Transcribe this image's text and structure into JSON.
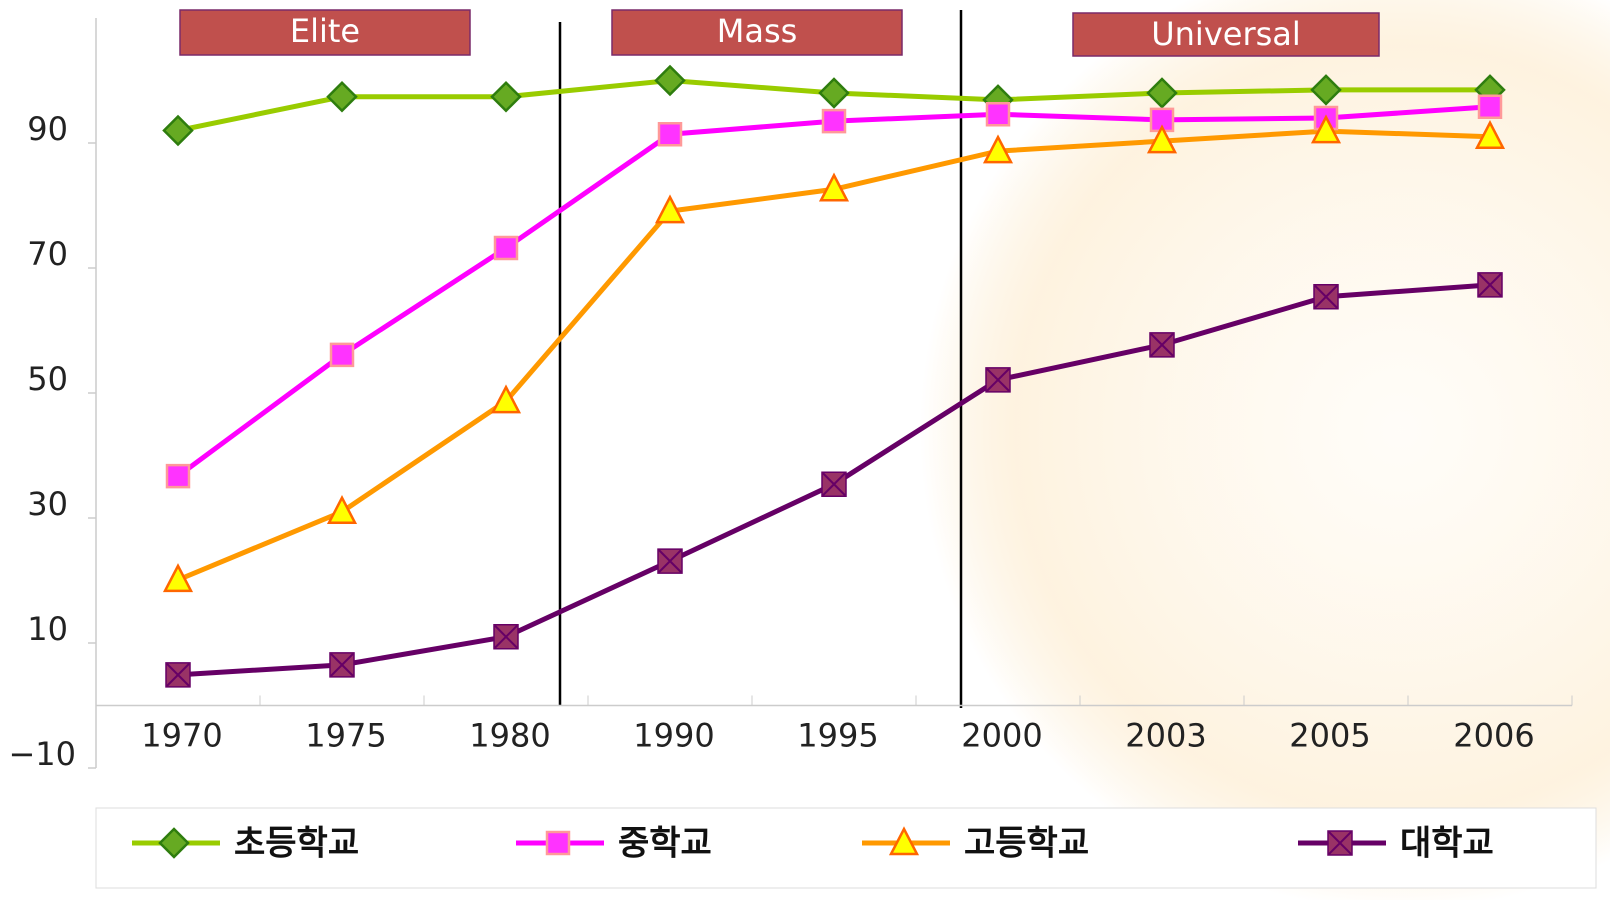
{
  "chart_data": {
    "type": "line",
    "annotations": [
      "Elite",
      "Mass",
      "Universal"
    ],
    "categories": [
      "1970",
      "1975",
      "1980",
      "1990",
      "1995",
      "2000",
      "2003",
      "2005",
      "2006"
    ],
    "series": [
      {
        "name": "초등학교",
        "color": "#99cc00",
        "marker": "diamond",
        "marker_fill": "#66aa22",
        "marker_stroke": "#2e7d0e",
        "values": [
          92,
          97.4,
          97.4,
          100,
          98,
          96.9,
          98,
          98.5,
          98.5
        ]
      },
      {
        "name": "중학교",
        "color": "#ff00ff",
        "marker": "square",
        "marker_fill": "#ff33ff",
        "marker_stroke": "#ff9999",
        "values": [
          36.7,
          56.1,
          73.2,
          91.4,
          93.5,
          94.6,
          93.7,
          94,
          95.8
        ]
      },
      {
        "name": "고등학교",
        "color": "#ff9900",
        "marker": "triangle",
        "marker_fill": "#ffff00",
        "marker_stroke": "#ff6600",
        "values": [
          20.1,
          31,
          48.7,
          79.1,
          82.6,
          88.7,
          90.3,
          91.9,
          91
        ]
      },
      {
        "name": "대학교",
        "color": "#660066",
        "marker": "cross-square",
        "marker_fill": "#993366",
        "marker_stroke": "#660066",
        "values": [
          4.9,
          6.5,
          11,
          23.1,
          35.4,
          52.1,
          57.7,
          65.4,
          67.3
        ]
      }
    ],
    "ylim": [
      -10,
      110
    ],
    "yticks": [
      {
        "value": -10,
        "label": "−10"
      },
      10,
      30,
      50,
      70,
      90
    ],
    "legend": "bottom"
  }
}
